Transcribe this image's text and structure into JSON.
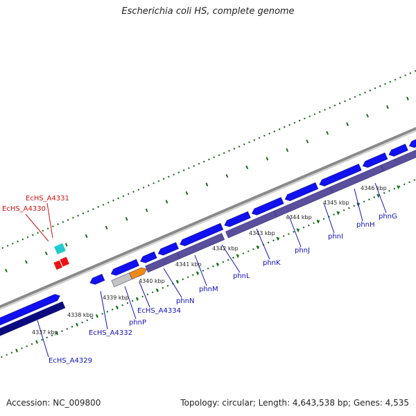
{
  "title": "Escherichia coli HS, complete genome",
  "footer": {
    "accession": "Accession: NC_009800",
    "summary": "Topology: circular; Length: 4,643,538 bp; Genes: 4,535"
  },
  "colors": {
    "backbone": "#9a9a9a",
    "gene_forward": "#1010f0",
    "gene_reverse": "#5a4f9c",
    "gene_reverse_dark": "#0b0b80",
    "gene_highlight": "#f08a14",
    "gene_gray": "#c4c4c4",
    "gene_cyan": "#22cccc",
    "gene_red": "#ee1111",
    "tick": "#157015",
    "label_blue": "#1010c0",
    "label_red": "#cc1111"
  },
  "kbp_labels": [
    "4337 kbp",
    "4338 kbp",
    "4339 kbp",
    "4340 kbp",
    "4341 kbp",
    "4342 kbp",
    "4343 kbp",
    "4344 kbp",
    "4345 kbp",
    "4346 kbp"
  ],
  "gene_labels": {
    "blue": [
      "EcHS_A4329",
      "EcHS_A4332",
      "phnP",
      "EcHS_A4334",
      "phnN",
      "phnM",
      "phnL",
      "phnK",
      "phnJ",
      "phnI",
      "phnH",
      "phnG"
    ],
    "red": [
      "EcHS_A4331",
      "EcHS_A4330"
    ]
  }
}
